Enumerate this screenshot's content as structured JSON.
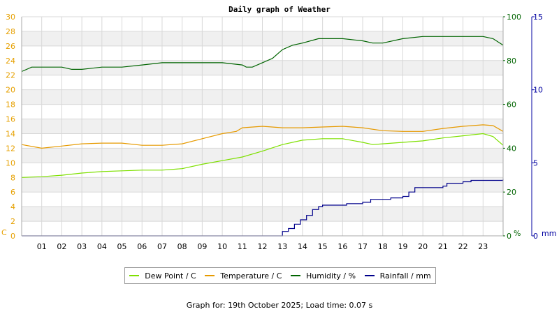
{
  "page": {
    "title": "Daily graph of Weather",
    "footer": "Graph for: 19th October 2025; Load time: 0.07 s"
  },
  "colors": {
    "dew": "#7ee000",
    "temp": "#e69a00",
    "humidity": "#006400",
    "rain": "#00008b",
    "left_axis": "#e6a000",
    "grid_band": "#f0f0f0",
    "grid_line": "#d8d8d8"
  },
  "chart_data": {
    "type": "line",
    "title": "Daily graph of Weather",
    "x_unit": "hour",
    "x_range": [
      0,
      24
    ],
    "x_tick_labels": [
      "01",
      "02",
      "03",
      "04",
      "05",
      "06",
      "07",
      "08",
      "09",
      "10",
      "11",
      "12",
      "13",
      "14",
      "15",
      "16",
      "17",
      "18",
      "19",
      "20",
      "21",
      "22",
      "23"
    ],
    "axes": {
      "left": {
        "unit_label": "C",
        "range": [
          0,
          30
        ],
        "ticks": [
          "0",
          "2",
          "4",
          "6",
          "8",
          "10",
          "12",
          "14",
          "16",
          "18",
          "20",
          "22",
          "24",
          "26",
          "28",
          "30"
        ]
      },
      "humidity": {
        "unit_label": "%",
        "range": [
          0,
          100
        ],
        "ticks": [
          "0",
          "20",
          "40",
          "60",
          "80",
          "100"
        ]
      },
      "rain": {
        "unit_label": "mm",
        "range": [
          0,
          15
        ],
        "ticks": [
          "0",
          "5",
          "10",
          "15"
        ]
      }
    },
    "grid": true,
    "legend_position": "bottom",
    "series": [
      {
        "name": "Dew Point / C",
        "axis": "left",
        "color": "#7ee000",
        "x": [
          0,
          1,
          2,
          3,
          4,
          5,
          6,
          7,
          8,
          9,
          10,
          11,
          12,
          13,
          14,
          15,
          16,
          17,
          17.5,
          18,
          19,
          20,
          21,
          22,
          23,
          23.5,
          24
        ],
        "y": [
          8.0,
          8.1,
          8.3,
          8.6,
          8.8,
          8.9,
          9.0,
          9.0,
          9.2,
          9.8,
          10.3,
          10.8,
          11.6,
          12.5,
          13.1,
          13.3,
          13.3,
          12.8,
          12.5,
          12.6,
          12.8,
          13.0,
          13.4,
          13.7,
          14.0,
          13.6,
          12.4
        ]
      },
      {
        "name": "Temperature / C",
        "axis": "left",
        "color": "#e69a00",
        "x": [
          0,
          1,
          2,
          3,
          4,
          5,
          6,
          7,
          8,
          9,
          10,
          10.7,
          11,
          12,
          13,
          14,
          15,
          16,
          17,
          18,
          19,
          20,
          21,
          22,
          23,
          23.5,
          24
        ],
        "y": [
          12.5,
          12.0,
          12.3,
          12.6,
          12.7,
          12.7,
          12.4,
          12.4,
          12.6,
          13.3,
          14.0,
          14.3,
          14.8,
          15.0,
          14.8,
          14.8,
          14.9,
          15.0,
          14.8,
          14.4,
          14.3,
          14.3,
          14.7,
          15.0,
          15.2,
          15.1,
          14.3
        ]
      },
      {
        "name": "Humidity / %",
        "axis": "left_pct",
        "color": "#006400",
        "x": [
          0,
          0.5,
          1,
          2,
          2.5,
          3,
          4,
          5,
          6,
          7,
          8,
          9,
          10,
          11,
          11.2,
          11.5,
          12,
          12.5,
          13,
          13.5,
          14,
          14.8,
          15,
          16,
          17,
          17.5,
          18,
          19,
          20,
          21,
          22,
          23,
          23.5,
          24
        ],
        "y": [
          75,
          77,
          77,
          77,
          76,
          76,
          77,
          77,
          78,
          79,
          79,
          79,
          79,
          78,
          77,
          77,
          79,
          81,
          85,
          87,
          88,
          90,
          90,
          90,
          89,
          88,
          88,
          90,
          91,
          91,
          91,
          91,
          90,
          87
        ]
      },
      {
        "name": "Rainfall / mm",
        "axis": "rain",
        "color": "#00008b",
        "x": [
          0,
          12.5,
          12.95,
          13,
          13.3,
          13.6,
          13.9,
          14.2,
          14.5,
          14.8,
          15,
          15.2,
          16,
          16.2,
          17,
          17.4,
          18,
          18.4,
          19,
          19.3,
          19.6,
          20,
          21,
          21.2,
          22,
          22.4,
          23,
          24
        ],
        "y": [
          0,
          0,
          0,
          0.3,
          0.5,
          0.8,
          1.1,
          1.4,
          1.8,
          2.0,
          2.1,
          2.1,
          2.1,
          2.2,
          2.3,
          2.5,
          2.5,
          2.6,
          2.7,
          3.0,
          3.3,
          3.3,
          3.4,
          3.6,
          3.7,
          3.8,
          3.8,
          3.9
        ]
      }
    ],
    "legend": [
      {
        "label": "Dew Point / C",
        "color": "#7ee000"
      },
      {
        "label": "Temperature / C",
        "color": "#e69a00"
      },
      {
        "label": "Humidity / %",
        "color": "#006400"
      },
      {
        "label": "Rainfall / mm",
        "color": "#00008b"
      }
    ]
  }
}
